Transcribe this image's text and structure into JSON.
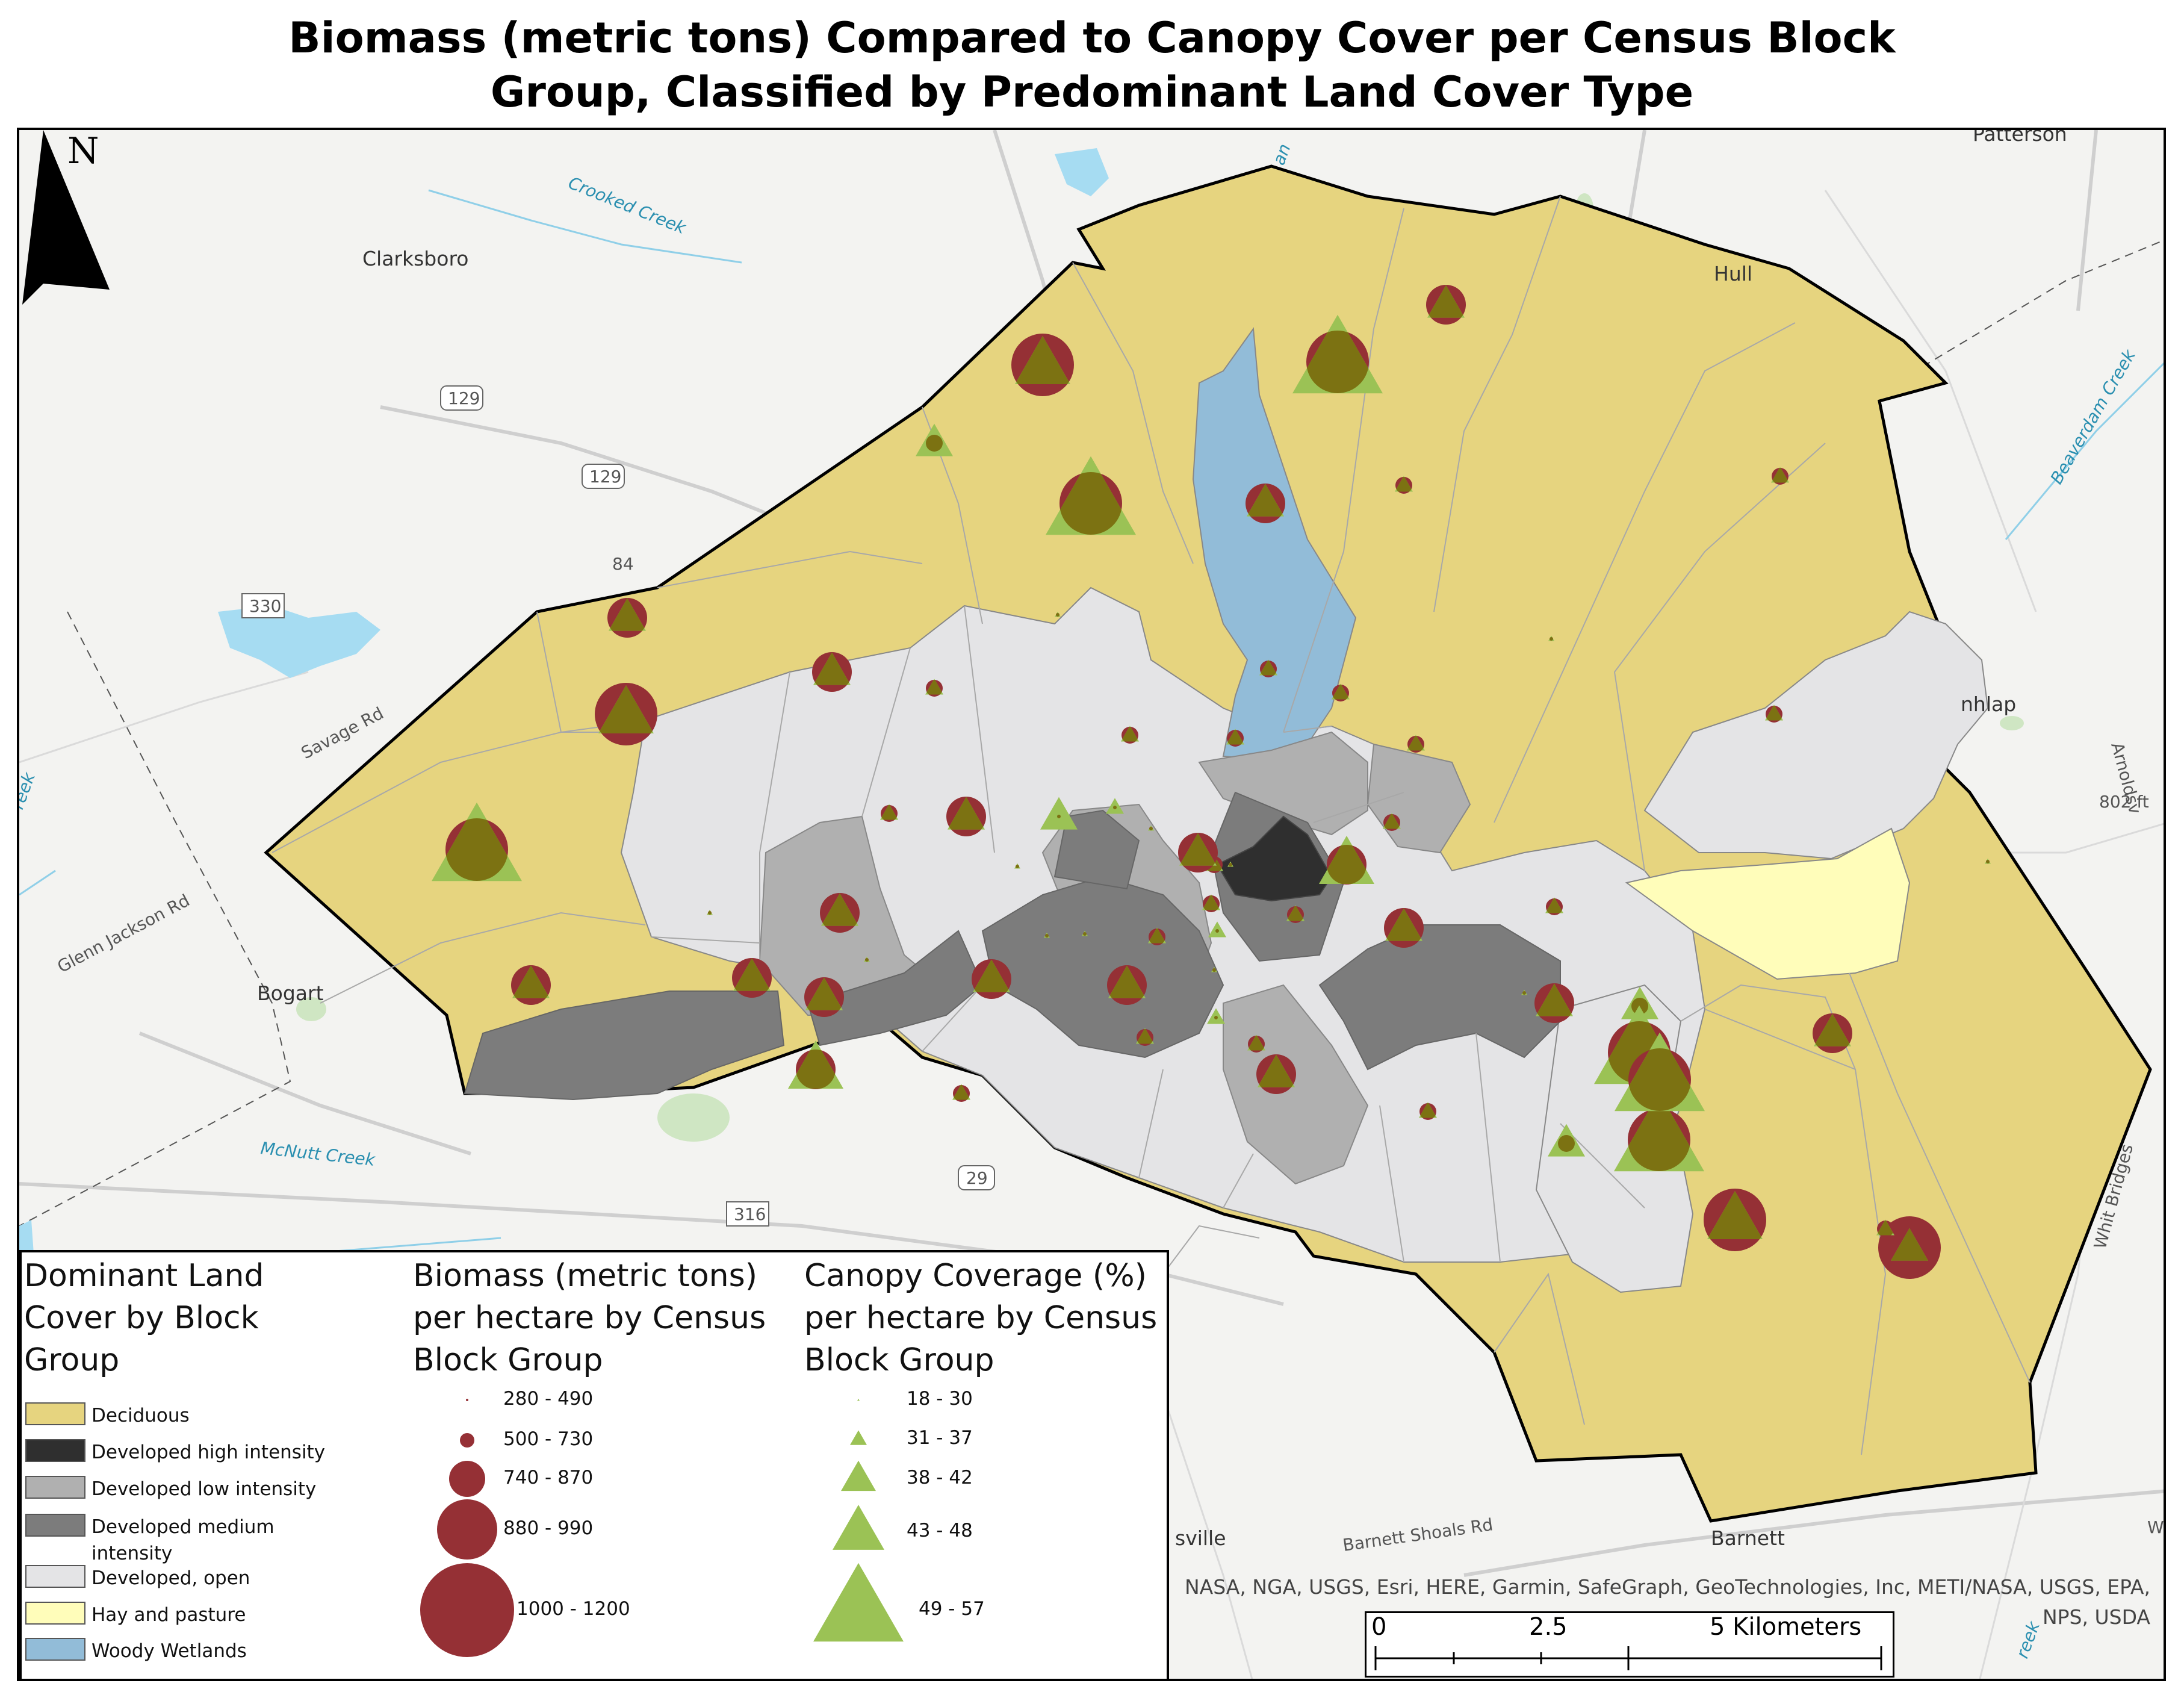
{
  "title": {
    "line1": "Biomass (metric tons) Compared to Canopy Cover per Census Block",
    "line2": "Group, Classified by Predominant Land Cover Type"
  },
  "north_arrow": {
    "label": "N"
  },
  "basemap": {
    "places": [
      "Clarksboro",
      "Hull",
      "Bogart",
      "Patterson",
      "nhlap",
      "sville",
      "Barnett"
    ],
    "roads": [
      "129",
      "129",
      "330",
      "316",
      "29",
      "Savage Rd",
      "Glenn Jackson Rd",
      "Barnett Shoals Rd",
      "Arnoldsv",
      "Whit Bridges",
      "W"
    ],
    "water": [
      "Crooked Creek",
      "McNutt Creek",
      "Beaverdam Creek",
      "reek",
      "reek",
      "an"
    ],
    "elevation": [
      "802 ft",
      "84"
    ]
  },
  "attribution": {
    "line1": "NASA, NGA, USGS, Esri, HERE, Garmin, SafeGraph, GeoTechnologies, Inc, METI/NASA, USGS, EPA,",
    "line2": "NPS, USDA"
  },
  "scalebar": {
    "labels": [
      "0",
      "2.5",
      "5 Kilometers"
    ]
  },
  "legend": {
    "landcover": {
      "title": "Dominant Land\nCover by Block\nGroup",
      "items": [
        {
          "label": "Deciduous",
          "color": "#e6d47f"
        },
        {
          "label": "Developed high intensity",
          "color": "#2f2f2f"
        },
        {
          "label": "Developed low intensity",
          "color": "#b0b0b0"
        },
        {
          "label": "Developed medium intensity",
          "color": "#7c7c7c"
        },
        {
          "label": "Developed, open",
          "color": "#e4e4e6"
        },
        {
          "label": "Hay and pasture",
          "color": "#fffdba"
        },
        {
          "label": "Woody Wetlands",
          "color": "#92bcd8"
        }
      ]
    },
    "biomass": {
      "title": "Biomass (metric tons)\nper hectare by Census\nBlock Group",
      "color": "#953035",
      "classes": [
        "280 - 490",
        "500 - 730",
        "740 - 870",
        "880 - 990",
        "1000 - 1200"
      ]
    },
    "canopy": {
      "title": "Canopy Coverage (%)\nper hectare by Census\nBlock Group",
      "color": "#9bc255",
      "classes": [
        "18 - 30",
        "31 - 37",
        "38 - 42",
        "43 - 48",
        "49 - 57"
      ]
    }
  },
  "colors": {
    "deciduous": "#e6d47f",
    "dev_high": "#2f2f2f",
    "dev_low": "#b0b0b0",
    "dev_medium": "#7c7c7c",
    "dev_open": "#e4e4e6",
    "hay": "#fffdba",
    "wetlands": "#92bcd8",
    "biomass": "#953035",
    "canopy": "#9bc255",
    "overlap": "#7c7212"
  },
  "symbols": [
    {
      "biomass": 4,
      "canopy": 4
    },
    {
      "biomass": 4,
      "canopy": 5
    },
    {
      "biomass": 2,
      "canopy": 3
    },
    {
      "biomass": 3,
      "canopy": 3
    },
    {
      "biomass": 2,
      "canopy": 2
    },
    {
      "biomass": 4,
      "canopy": 5
    },
    {
      "biomass": 3,
      "canopy": 3
    },
    {
      "biomass": 2,
      "canopy": 2
    },
    {
      "biomass": 3,
      "canopy": 3
    },
    {
      "biomass": 1,
      "canopy": 1
    },
    {
      "biomass": 3,
      "canopy": 3
    },
    {
      "biomass": 2,
      "canopy": 2
    },
    {
      "biomass": 4,
      "canopy": 4
    },
    {
      "biomass": 2,
      "canopy": 2
    },
    {
      "biomass": 1,
      "canopy": 1
    },
    {
      "biomass": 2,
      "canopy": 2
    },
    {
      "biomass": 2,
      "canopy": 2
    },
    {
      "biomass": 2,
      "canopy": 2
    },
    {
      "biomass": 2,
      "canopy": 2
    },
    {
      "biomass": 4,
      "canopy": 5
    },
    {
      "biomass": 3,
      "canopy": 3
    },
    {
      "biomass": 2,
      "canopy": 2
    },
    {
      "biomass": 1,
      "canopy": 3
    },
    {
      "biomass": 1,
      "canopy": 2
    },
    {
      "biomass": 1,
      "canopy": 1
    },
    {
      "biomass": 2,
      "canopy": 2
    },
    {
      "biomass": 1,
      "canopy": 1
    },
    {
      "biomass": 2,
      "canopy": 2
    },
    {
      "biomass": 3,
      "canopy": 3
    },
    {
      "biomass": 2,
      "canopy": 2
    },
    {
      "biomass": 1,
      "canopy": 1
    },
    {
      "biomass": 2,
      "canopy": 2
    },
    {
      "biomass": 3,
      "canopy": 4
    },
    {
      "biomass": 3,
      "canopy": 3
    },
    {
      "biomass": 1,
      "canopy": 1
    },
    {
      "biomass": 1,
      "canopy": 1
    },
    {
      "biomass": 1,
      "canopy": 1
    },
    {
      "biomass": 2,
      "canopy": 2
    },
    {
      "biomass": 1,
      "canopy": 2
    },
    {
      "biomass": 2,
      "canopy": 2
    },
    {
      "biomass": 3,
      "canopy": 3
    },
    {
      "biomass": 3,
      "canopy": 3
    },
    {
      "biomass": 3,
      "canopy": 3
    },
    {
      "biomass": 2,
      "canopy": 2
    },
    {
      "biomass": 1,
      "canopy": 1
    },
    {
      "biomass": 3,
      "canopy": 3
    },
    {
      "biomass": 3,
      "canopy": 3
    },
    {
      "biomass": 2,
      "canopy": 2
    },
    {
      "biomass": 1,
      "canopy": 1
    },
    {
      "biomass": 2,
      "canopy": 2
    },
    {
      "biomass": 1,
      "canopy": 2
    },
    {
      "biomass": 3,
      "canopy": 3
    },
    {
      "biomass": 2,
      "canopy": 3
    },
    {
      "biomass": 4,
      "canopy": 5
    },
    {
      "biomass": 3,
      "canopy": 3
    },
    {
      "biomass": 4,
      "canopy": 5
    },
    {
      "biomass": 1,
      "canopy": 1
    },
    {
      "biomass": 3,
      "canopy": 3
    },
    {
      "biomass": 4,
      "canopy": 5
    },
    {
      "biomass": 4,
      "canopy": 4
    },
    {
      "biomass": 4,
      "canopy": 3
    },
    {
      "biomass": 2,
      "canopy": 2
    },
    {
      "biomass": 1,
      "canopy": 1
    },
    {
      "biomass": 2,
      "canopy": 3
    },
    {
      "biomass": 2,
      "canopy": 2
    },
    {
      "biomass": 2,
      "canopy": 2
    },
    {
      "biomass": 3,
      "canopy": 3
    },
    {
      "biomass": 3,
      "canopy": 4
    }
  ]
}
